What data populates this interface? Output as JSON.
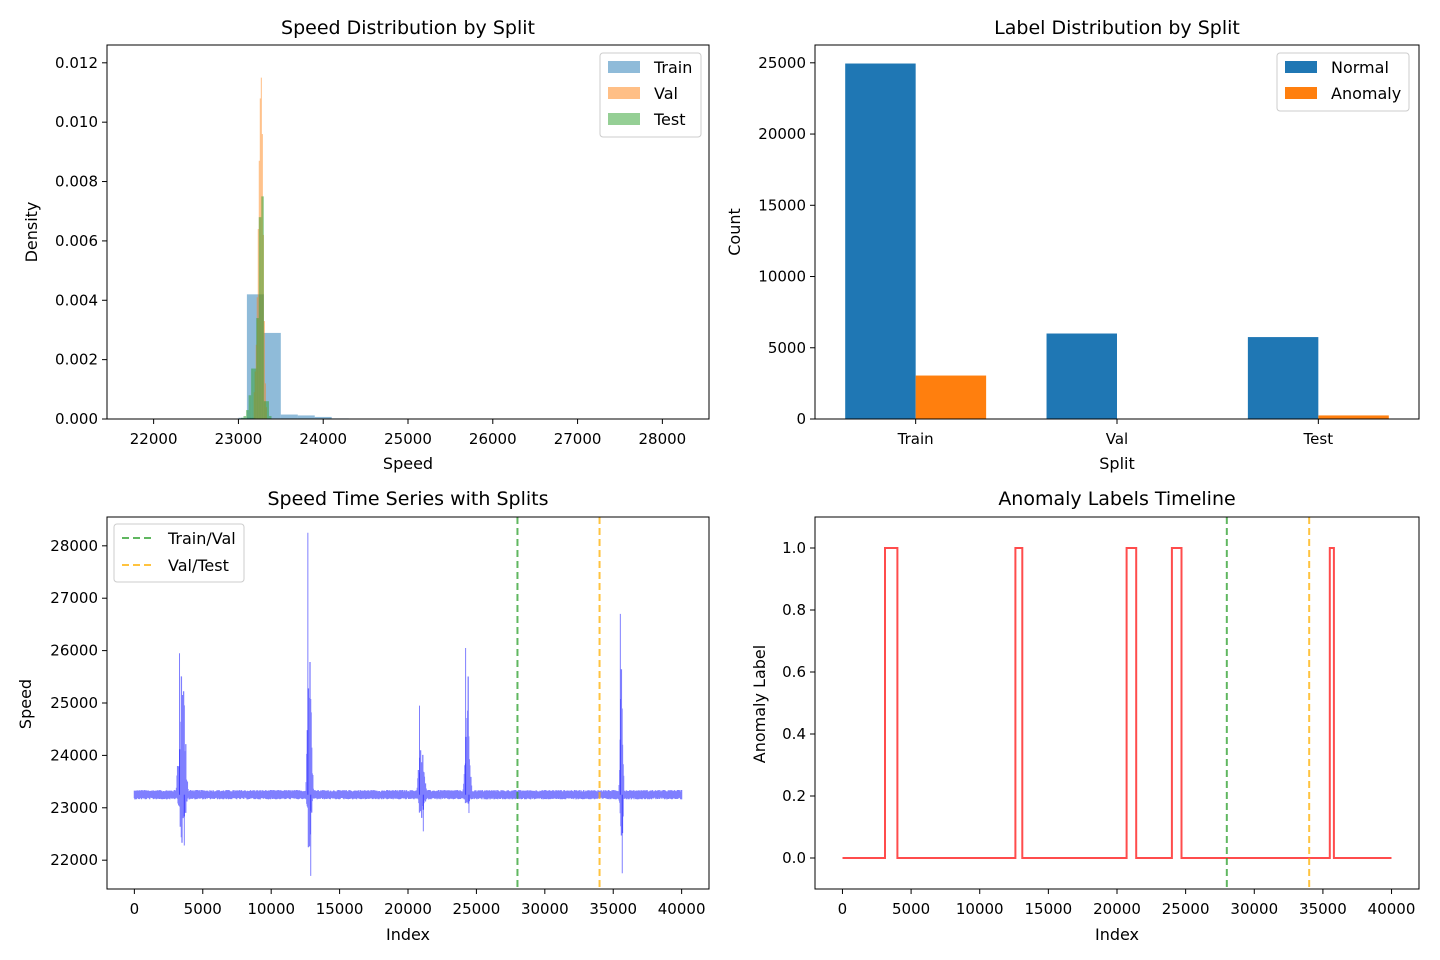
{
  "chart_data": [
    {
      "id": "speed-hist",
      "type": "histogram",
      "title": "Speed Distribution by Split",
      "xlabel": "Speed",
      "ylabel": "Density",
      "xlim": [
        21450,
        28550
      ],
      "ylim": [
        0,
        0.0126
      ],
      "xticks": [
        22000,
        23000,
        24000,
        25000,
        26000,
        27000,
        28000
      ],
      "yticks": [
        0.0,
        0.002,
        0.004,
        0.006,
        0.008,
        0.01,
        0.012
      ],
      "ytick_labels": [
        "0.000",
        "0.002",
        "0.004",
        "0.006",
        "0.008",
        "0.010",
        "0.012"
      ],
      "legend": "top-right",
      "series": [
        {
          "name": "Train",
          "color": "#1f77b4",
          "alpha": 0.5,
          "bin_width": 200,
          "bins": [
            [
              23000,
              4e-05
            ],
            [
              23100,
              0.0042
            ],
            [
              23300,
              0.0029
            ],
            [
              23500,
              0.00015
            ],
            [
              23700,
              0.00012
            ],
            [
              23900,
              7e-05
            ],
            [
              24100,
              2e-05
            ]
          ]
        },
        {
          "name": "Val",
          "color": "#ff7f0e",
          "alpha": 0.5,
          "bin_width": 12,
          "bins": [
            [
              23180,
              0.0009
            ],
            [
              23192,
              0.0016
            ],
            [
              23204,
              0.0025
            ],
            [
              23216,
              0.0041
            ],
            [
              23228,
              0.0064
            ],
            [
              23240,
              0.0087
            ],
            [
              23252,
              0.0108
            ],
            [
              23264,
              0.0115
            ],
            [
              23276,
              0.0096
            ],
            [
              23288,
              0.0062
            ],
            [
              23300,
              0.0033
            ],
            [
              23312,
              0.0012
            ],
            [
              23324,
              0.0004
            ]
          ]
        },
        {
          "name": "Test",
          "color": "#2ca02c",
          "alpha": 0.5,
          "bin_width": 30,
          "bins": [
            [
              23030,
              4e-05
            ],
            [
              23060,
              0.0001
            ],
            [
              23090,
              0.0003
            ],
            [
              23120,
              0.0008
            ],
            [
              23150,
              0.0017
            ],
            [
              23180,
              0.0017
            ],
            [
              23210,
              0.0034
            ],
            [
              23240,
              0.0068
            ],
            [
              23270,
              0.0075
            ],
            [
              23300,
              0.0006
            ],
            [
              23330,
              0.0006
            ],
            [
              23360,
              0.0001
            ]
          ]
        }
      ]
    },
    {
      "id": "label-bar",
      "type": "bar",
      "title": "Label Distribution by Split",
      "xlabel": "Split",
      "ylabel": "Count",
      "categories": [
        "Train",
        "Val",
        "Test"
      ],
      "ylim": [
        0,
        26250
      ],
      "yticks": [
        0,
        5000,
        10000,
        15000,
        20000,
        25000
      ],
      "legend": "top-right",
      "series": [
        {
          "name": "Normal",
          "color": "#1f77b4",
          "values": [
            24950,
            6000,
            5750
          ]
        },
        {
          "name": "Anomaly",
          "color": "#ff7f0e",
          "values": [
            3050,
            0,
            250
          ]
        }
      ]
    },
    {
      "id": "speed-series",
      "type": "line",
      "title": "Speed Time Series with Splits",
      "xlabel": "Index",
      "ylabel": "Speed",
      "xlim": [
        -2000,
        42000
      ],
      "ylim": [
        21450,
        28550
      ],
      "xticks": [
        0,
        5000,
        10000,
        15000,
        20000,
        25000,
        30000,
        35000,
        40000
      ],
      "yticks": [
        22000,
        23000,
        24000,
        25000,
        26000,
        27000,
        28000
      ],
      "legend": "top-left",
      "series": [
        {
          "name": "",
          "color": "#0000ff",
          "alpha": 0.5,
          "baseline": 23250,
          "noise_band": 90,
          "length": 40000,
          "events": [
            {
              "start": 3000,
              "end": 4000,
              "peak": 25950,
              "min": 22280
            },
            {
              "start": 12500,
              "end": 13100,
              "peak": 28250,
              "min": 21700
            },
            {
              "start": 20600,
              "end": 21400,
              "peak": 24950,
              "min": 22550
            },
            {
              "start": 24000,
              "end": 24700,
              "peak": 26050,
              "min": 22900
            },
            {
              "start": 35400,
              "end": 35800,
              "peak": 26700,
              "min": 21750
            }
          ]
        }
      ],
      "vlines": [
        {
          "name": "Train/Val",
          "x": 28000,
          "color": "#2ca02c"
        },
        {
          "name": "Val/Test",
          "x": 34000,
          "color": "#ffb000"
        }
      ]
    },
    {
      "id": "anomaly-timeline",
      "type": "line",
      "title": "Anomaly Labels Timeline",
      "xlabel": "Index",
      "ylabel": "Anomaly Label",
      "xlim": [
        -2000,
        42000
      ],
      "ylim": [
        -0.1,
        1.1
      ],
      "xticks": [
        0,
        5000,
        10000,
        15000,
        20000,
        25000,
        30000,
        35000,
        40000
      ],
      "yticks": [
        0.0,
        0.2,
        0.4,
        0.6,
        0.8,
        1.0
      ],
      "ytick_labels": [
        "0.0",
        "0.2",
        "0.4",
        "0.6",
        "0.8",
        "1.0"
      ],
      "series": [
        {
          "name": "",
          "color": "#ff0000",
          "alpha": 0.7,
          "x": [
            0,
            3100,
            3100,
            4000,
            4000,
            12600,
            12600,
            13100,
            13100,
            20700,
            20700,
            21400,
            21400,
            24000,
            24000,
            24700,
            24700,
            35500,
            35500,
            35800,
            35800,
            40000
          ],
          "y": [
            0,
            0,
            1,
            1,
            0,
            0,
            1,
            1,
            0,
            0,
            1,
            1,
            0,
            0,
            1,
            1,
            0,
            0,
            1,
            1,
            0,
            0
          ]
        }
      ],
      "vlines": [
        {
          "name": "",
          "x": 28000,
          "color": "#2ca02c"
        },
        {
          "name": "",
          "x": 34000,
          "color": "#ffb000"
        }
      ]
    }
  ]
}
